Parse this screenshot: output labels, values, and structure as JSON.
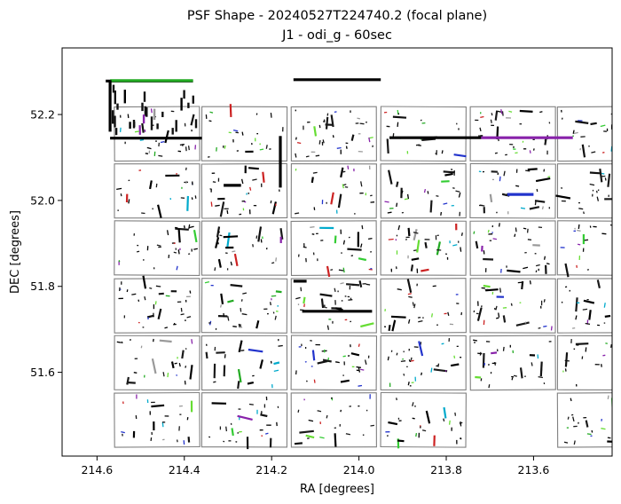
{
  "chart_data": {
    "type": "scatter",
    "title": "PSF Shape - 20240527T224740.2 (focal plane)",
    "subtitle": "J1 - odi_g - 60sec",
    "xlabel": "RA [degrees]",
    "ylabel": "DEC [degrees]",
    "xlim": [
      214.68,
      213.42
    ],
    "ylim": [
      51.405,
      52.355
    ],
    "x_inverted": true,
    "grid": false,
    "xticks": [
      214.6,
      214.4,
      214.2,
      214.0,
      213.8,
      213.6
    ],
    "xtick_labels": [
      "214.6",
      "214.4",
      "214.2",
      "214.0",
      "213.8",
      "213.6"
    ],
    "yticks": [
      51.6,
      51.8,
      52.0,
      52.2
    ],
    "ytick_labels": [
      "51.6",
      "51.8",
      "52.0",
      "52.2"
    ],
    "ccd_grid": {
      "columns_ra": [
        214.56,
        214.36,
        214.155,
        213.95,
        213.745,
        213.545
      ],
      "col_width": 0.195,
      "rows_dec": [
        52.218,
        52.085,
        51.952,
        51.818,
        51.685,
        51.552
      ],
      "row_height": 0.126,
      "missing": [
        [
          5,
          4
        ]
      ]
    },
    "colors": [
      "#000000",
      "#111111",
      "#1a1a1a",
      "#2233cc",
      "#22aa22",
      "#33cc33",
      "#66dd33",
      "#8822aa",
      "#00aacc",
      "#cc2222",
      "#999999"
    ],
    "features": {
      "heavy_lines": [
        {
          "x0": 214.58,
          "x1": 214.38,
          "y0": 52.278,
          "y1": 52.278,
          "color": "#000000"
        },
        {
          "x0": 214.57,
          "x1": 214.38,
          "y0": 52.279,
          "y1": 52.279,
          "color": "#22aa22"
        },
        {
          "x0": 214.15,
          "x1": 213.95,
          "y0": 52.281,
          "y1": 52.281,
          "color": "#000000"
        },
        {
          "x0": 214.57,
          "x1": 214.36,
          "y0": 52.145,
          "y1": 52.145,
          "color": "#000000"
        },
        {
          "x0": 213.93,
          "x1": 213.72,
          "y0": 52.146,
          "y1": 52.146,
          "color": "#000000"
        },
        {
          "x0": 213.72,
          "x1": 213.51,
          "y0": 52.146,
          "y1": 52.146,
          "color": "#8822aa"
        },
        {
          "x0": 214.57,
          "x1": 214.57,
          "y0": 52.16,
          "y1": 52.28,
          "color": "#000000"
        },
        {
          "x0": 214.18,
          "x1": 214.18,
          "y0": 52.03,
          "y1": 52.15,
          "color": "#000000"
        },
        {
          "x0": 214.13,
          "x1": 213.97,
          "y0": 51.742,
          "y1": 51.742,
          "color": "#000000"
        },
        {
          "x0": 214.31,
          "x1": 214.27,
          "y0": 52.035,
          "y1": 52.035,
          "color": "#000000"
        },
        {
          "x0": 214.15,
          "x1": 214.12,
          "y0": 51.812,
          "y1": 51.812,
          "color": "#000000"
        },
        {
          "x0": 213.66,
          "x1": 213.6,
          "y0": 52.014,
          "y1": 52.014,
          "color": "#2233cc"
        }
      ]
    }
  }
}
